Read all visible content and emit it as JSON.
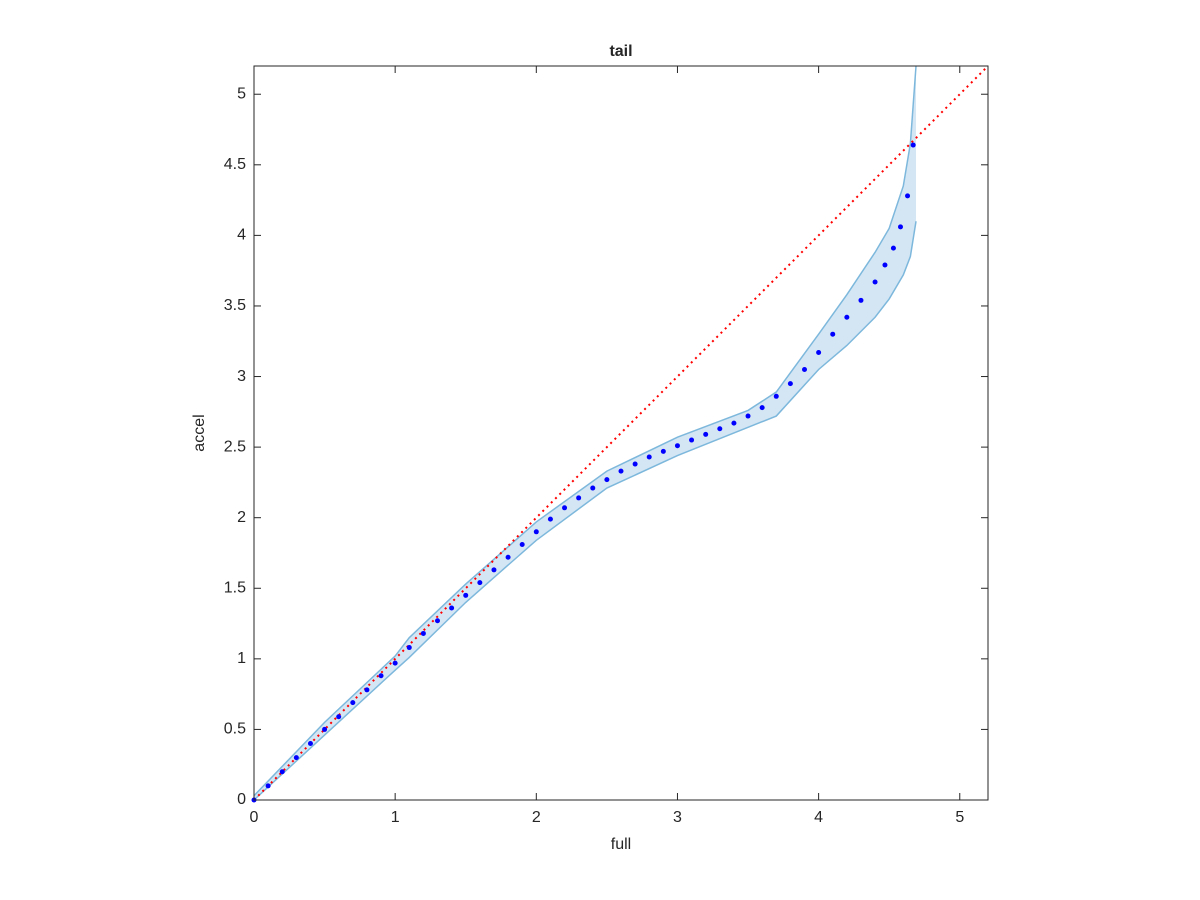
{
  "chart_data": {
    "type": "scatter",
    "title": "tail",
    "x_label": "full",
    "y_label": "accel",
    "xlim": [
      0,
      5.2
    ],
    "ylim": [
      0,
      5.2
    ],
    "xticks": [
      0,
      1,
      2,
      3,
      4,
      5
    ],
    "yticks": [
      0,
      0.5,
      1,
      1.5,
      2,
      2.5,
      3,
      3.5,
      4,
      4.5,
      5
    ],
    "points": {
      "color": "#0000ff",
      "x": [
        0,
        0.1,
        0.2,
        0.3,
        0.4,
        0.5,
        0.6,
        0.7,
        0.8,
        0.9,
        1.0,
        1.1,
        1.2,
        1.3,
        1.4,
        1.5,
        1.6,
        1.7,
        1.8,
        1.9,
        2.0,
        2.1,
        2.2,
        2.3,
        2.4,
        2.5,
        2.6,
        2.7,
        2.8,
        2.9,
        3.0,
        3.1,
        3.2,
        3.3,
        3.4,
        3.5,
        3.6,
        3.7,
        3.8,
        3.9,
        4.0,
        4.1,
        4.2,
        4.3,
        4.4,
        4.47,
        4.53,
        4.58,
        4.63,
        4.67
      ],
      "y": [
        0,
        0.1,
        0.2,
        0.3,
        0.4,
        0.5,
        0.59,
        0.69,
        0.78,
        0.88,
        0.97,
        1.08,
        1.18,
        1.27,
        1.36,
        1.45,
        1.54,
        1.63,
        1.72,
        1.81,
        1.9,
        1.99,
        2.07,
        2.14,
        2.21,
        2.27,
        2.33,
        2.38,
        2.43,
        2.47,
        2.51,
        2.55,
        2.59,
        2.63,
        2.67,
        2.72,
        2.78,
        2.86,
        2.95,
        3.05,
        3.17,
        3.3,
        3.42,
        3.54,
        3.67,
        3.79,
        3.91,
        4.06,
        4.28,
        4.64
      ]
    },
    "band": {
      "color": "#7db8dc",
      "fill": "#d4e6f4",
      "x": [
        0,
        0.5,
        1.0,
        1.1,
        1.5,
        2.0,
        2.5,
        3.0,
        3.5,
        3.7,
        4.0,
        4.2,
        4.4,
        4.5,
        4.6,
        4.65,
        4.69
      ],
      "upper": [
        0.03,
        0.55,
        1.02,
        1.15,
        1.53,
        1.97,
        2.33,
        2.57,
        2.76,
        2.89,
        3.3,
        3.58,
        3.88,
        4.05,
        4.35,
        4.65,
        5.2
      ],
      "lower": [
        0,
        0.46,
        0.92,
        1.01,
        1.4,
        1.84,
        2.21,
        2.44,
        2.64,
        2.72,
        3.05,
        3.22,
        3.42,
        3.55,
        3.72,
        3.85,
        4.1
      ]
    },
    "reference_line": {
      "color": "#ff0000",
      "x": [
        0,
        5.2
      ],
      "y": [
        0,
        5.2
      ]
    }
  }
}
